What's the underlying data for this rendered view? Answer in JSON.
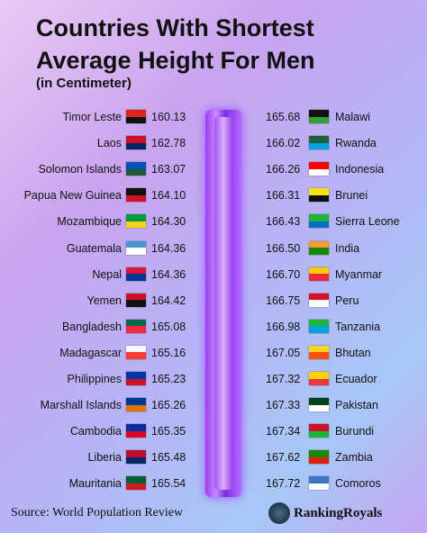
{
  "header": {
    "title_line1": "Countries With Shortest",
    "title_line2": "Average Height For Men",
    "subtitle": "(in Centimeter)"
  },
  "left_column": [
    {
      "country": "Timor Leste",
      "height": "160.13"
    },
    {
      "country": "Laos",
      "height": "162.78"
    },
    {
      "country": "Solomon Islands",
      "height": "163.07"
    },
    {
      "country": "Papua New Guinea",
      "height": "164.10"
    },
    {
      "country": "Mozambique",
      "height": "164.30"
    },
    {
      "country": "Guatemala",
      "height": "164.36"
    },
    {
      "country": "Nepal",
      "height": "164.36"
    },
    {
      "country": "Yemen",
      "height": "164.42"
    },
    {
      "country": "Bangladesh",
      "height": "165.08"
    },
    {
      "country": "Madagascar",
      "height": "165.16"
    },
    {
      "country": "Philippines",
      "height": "165.23"
    },
    {
      "country": "Marshall Islands",
      "height": "165.26"
    },
    {
      "country": "Cambodia",
      "height": "165.35"
    },
    {
      "country": "Liberia",
      "height": "165.48"
    },
    {
      "country": "Mauritania",
      "height": "165.54"
    }
  ],
  "right_column": [
    {
      "country": "Malawi",
      "height": "165.68"
    },
    {
      "country": "Rwanda",
      "height": "166.02"
    },
    {
      "country": "Indonesia",
      "height": "166.26"
    },
    {
      "country": "Brunei",
      "height": "166.31"
    },
    {
      "country": "Sierra Leone",
      "height": "166.43"
    },
    {
      "country": "India",
      "height": "166.50"
    },
    {
      "country": "Myanmar",
      "height": "166.70"
    },
    {
      "country": "Peru",
      "height": "166.75"
    },
    {
      "country": "Tanzania",
      "height": "166.98"
    },
    {
      "country": "Bhutan",
      "height": "167.05"
    },
    {
      "country": "Ecuador",
      "height": "167.32"
    },
    {
      "country": "Pakistan",
      "height": "167.33"
    },
    {
      "country": "Burundi",
      "height": "167.34"
    },
    {
      "country": "Zambia",
      "height": "167.62"
    },
    {
      "country": "Comoros",
      "height": "167.72"
    }
  ],
  "footer": {
    "source": "Source: World Population Review",
    "brand": "RankingRoyals"
  }
}
